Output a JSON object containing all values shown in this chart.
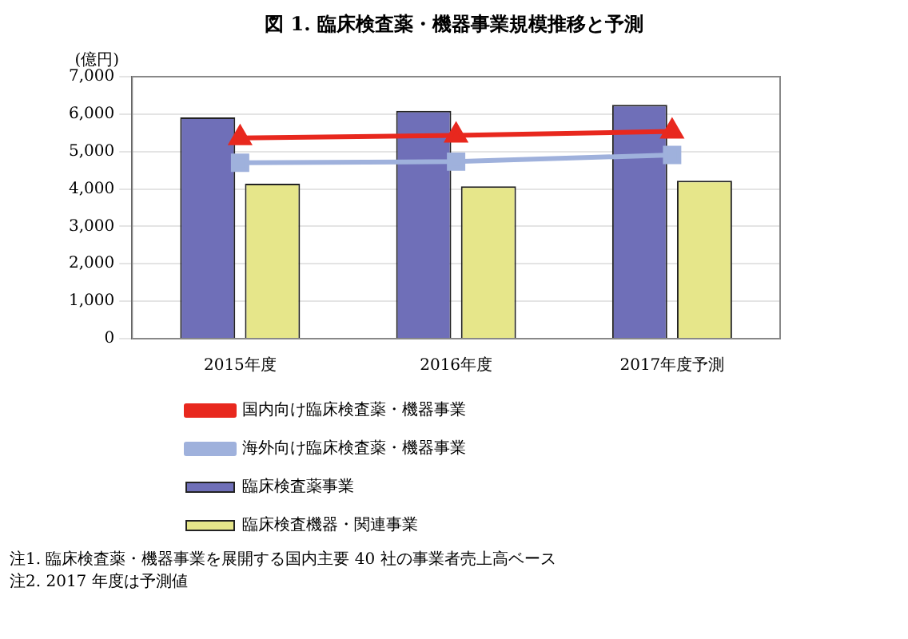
{
  "chart_data": {
    "type": "bar",
    "title": "図 1. 臨床検査薬・機器事業規模推移と予測",
    "ylabel": "(億円)",
    "categories": [
      "2015年度",
      "2016年度",
      "2017年度予測"
    ],
    "series": [
      {
        "name": "臨床検査薬事業",
        "color": "#6f6fb8",
        "values": [
          5910,
          6090,
          6250
        ]
      },
      {
        "name": "臨床検査機器・関連事業",
        "color": "#e6e68a",
        "values": [
          4140,
          4070,
          4220
        ]
      },
      {
        "name": "国内向け臨床検査薬・機器事業",
        "type": "line",
        "color": "#e8281e",
        "marker": "triangle",
        "values": [
          5360,
          5430,
          5540
        ]
      },
      {
        "name": "海外向け臨床検査薬・機器事業",
        "type": "line",
        "color": "#9fb1dc",
        "marker": "square",
        "values": [
          4700,
          4730,
          4910
        ]
      }
    ],
    "ylim": [
      0,
      7000
    ],
    "yticks": [
      {
        "value": 0,
        "label": "0"
      },
      {
        "value": 1000,
        "label": "1,000"
      },
      {
        "value": 2000,
        "label": "2,000"
      },
      {
        "value": 3000,
        "label": "3,000"
      },
      {
        "value": 4000,
        "label": "4,000"
      },
      {
        "value": 5000,
        "label": "5,000"
      },
      {
        "value": 6000,
        "label": "6,000"
      },
      {
        "value": 7000,
        "label": "7,000"
      }
    ],
    "grid": "y",
    "legend": "bottom",
    "annotations": [
      "注1. 臨床検査薬・機器事業を展開する国内主要 40 社の事業者売上高ベース",
      "注2. 2017 年度は予測値"
    ]
  }
}
